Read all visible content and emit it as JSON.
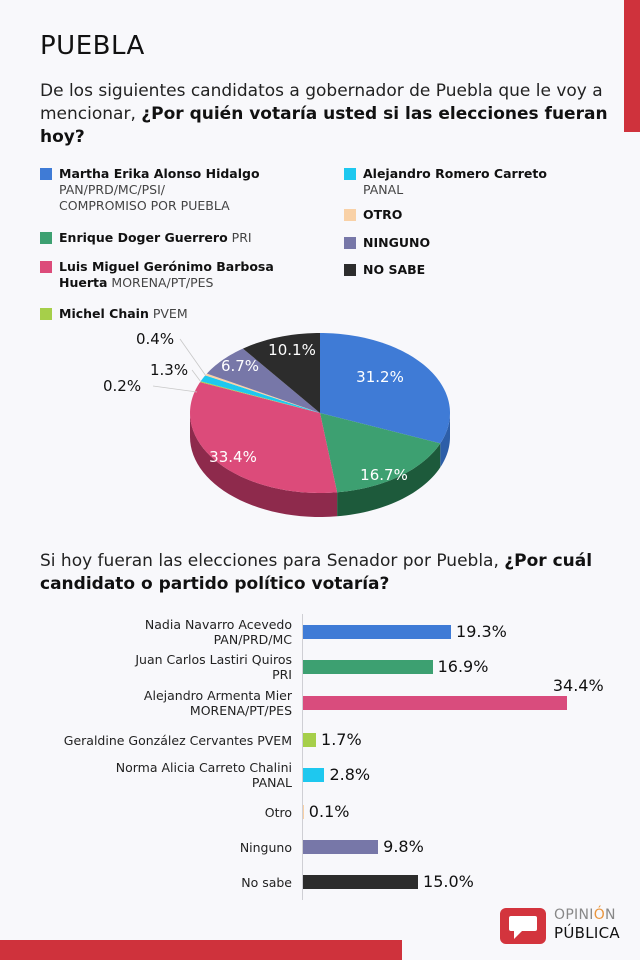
{
  "header": {
    "title": "PUEBLA",
    "question1_plain": "De los siguientes candidatos a gobernador de Puebla que le voy a mencionar, ",
    "question1_bold": "¿Por quién votaría usted si las elecciones fueran hoy?"
  },
  "legend": [
    {
      "name": "Martha Erika Alonso Hidalgo",
      "party": "PAN/PRD/MC/PSI/ COMPROMISO POR PUEBLA",
      "color": "#3f7bd6"
    },
    {
      "name": "Enrique Doger Guerrero",
      "party": "PRI",
      "color": "#3da071"
    },
    {
      "name": "Luis Miguel Gerónimo Barbosa Huerta",
      "party": "MORENA/PT/PES",
      "color": "#dc4b7a"
    },
    {
      "name": "Michel Chain",
      "party": "PVEM",
      "color": "#a6cf4a"
    },
    {
      "name": "Alejandro Romero Carreto",
      "party": "PANAL",
      "color": "#1ec8ef"
    },
    {
      "name": "OTRO",
      "party": "",
      "color": "#f9d1a6"
    },
    {
      "name": "NINGUNO",
      "party": "",
      "color": "#7777a8"
    },
    {
      "name": "NO SABE",
      "party": "",
      "color": "#2c2c2c"
    }
  ],
  "question2": {
    "plain": "Si hoy fueran las elecciones para Senador por Puebla, ",
    "bold": "¿Por cuál candidato o partido político votaría?"
  },
  "branding": {
    "logo_line1_a": "OPINI",
    "logo_line1_b": "Ó",
    "logo_line1_c": "N",
    "logo_line2": "PÚBLICA"
  },
  "colors": {
    "accent_red": "#cf323c"
  },
  "chart_data": [
    {
      "type": "pie",
      "title": "¿Por quién votaría usted si las elecciones fueran hoy? (Gobernador de Puebla)",
      "categories": [
        "Martha Erika Alonso Hidalgo",
        "Enrique Doger Guerrero",
        "Luis Miguel Gerónimo Barbosa Huerta",
        "Michel Chain",
        "Alejandro Romero Carreto",
        "Otro",
        "Ninguno",
        "No sabe"
      ],
      "values": [
        31.2,
        16.7,
        33.4,
        0.2,
        1.3,
        0.4,
        6.7,
        10.1
      ],
      "labels": [
        "31.2%",
        "16.7%",
        "33.4%",
        "0.2%",
        "1.3%",
        "0.4%",
        "6.7%",
        "10.1%"
      ],
      "colors": [
        "#3f7bd6",
        "#3da071",
        "#dc4b7a",
        "#a6cf4a",
        "#1ec8ef",
        "#f9d1a6",
        "#7777a8",
        "#2c2c2c"
      ],
      "side_colors": [
        "#2d5ea8",
        "#1d5a3b",
        "#8e2a4c",
        "#6f9a2a",
        "#1496b8",
        "#c9a37c",
        "#52527a",
        "#1a1a1a"
      ],
      "legend_position": "top",
      "style": "3d"
    },
    {
      "type": "bar",
      "orientation": "horizontal",
      "title": "Si hoy fueran las elecciones para Senador por Puebla, ¿Por cuál candidato o partido político votaría?",
      "categories": [
        "Nadia Navarro Acevedo PAN/PRD/MC",
        "Juan Carlos Lastiri Quiros PRI",
        "Alejandro Armenta Mier MORENA/PT/PES",
        "Geraldine González Cervantes PVEM",
        "Norma Alicia Carreto Chalini PANAL",
        "Otro",
        "Ninguno",
        "No sabe"
      ],
      "label_lines": [
        [
          "Nadia Navarro Acevedo",
          "PAN/PRD/MC"
        ],
        [
          "Juan Carlos Lastiri Quiros",
          "PRI"
        ],
        [
          "Alejandro Armenta Mier",
          "MORENA/PT/PES"
        ],
        [
          "Geraldine González Cervantes PVEM"
        ],
        [
          "Norma Alicia Carreto Chalini",
          "PANAL"
        ],
        [
          "Otro"
        ],
        [
          "Ninguno"
        ],
        [
          "No sabe"
        ]
      ],
      "values": [
        19.3,
        16.9,
        34.4,
        1.7,
        2.8,
        0.1,
        9.8,
        15.0
      ],
      "labels": [
        "19.3%",
        "16.9%",
        "34.4%",
        "1.7%",
        "2.8%",
        "0.1%",
        "9.8%",
        "15.0%"
      ],
      "colors": [
        "#3f7bd6",
        "#3da071",
        "#d94c7d",
        "#a6cf4a",
        "#1ec8ef",
        "#f9d1a6",
        "#7777a8",
        "#2c2c2c"
      ],
      "xlabel": "",
      "ylabel": "",
      "grid": false
    }
  ]
}
